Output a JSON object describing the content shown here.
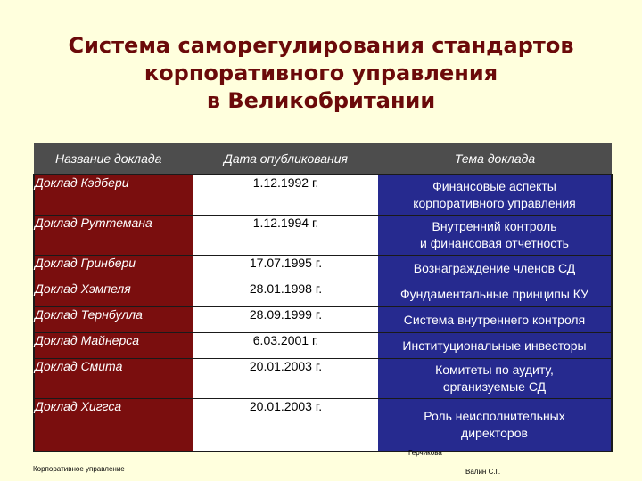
{
  "title": {
    "line1": "Система саморегулирования стандартов",
    "line2": "корпоративного управления",
    "line3": "в Великобритании"
  },
  "table": {
    "headers": [
      "Название доклада",
      "Дата опубликования",
      "Тема доклада"
    ],
    "rows": [
      {
        "name": "Доклад Кэдбери",
        "date": "1.12.1992 г.",
        "topic1": "Финансовые аспекты",
        "topic2": "корпоративного управления"
      },
      {
        "name": "Доклад Руттемана",
        "date": "1.12.1994 г.",
        "topic1": "Внутренний контроль",
        "topic2": "и финансовая отчетность"
      },
      {
        "name": "Доклад Гринбери",
        "date": "17.07.1995 г.",
        "topic1": "Вознаграждение членов СД",
        "topic2": ""
      },
      {
        "name": "Доклад Хэмпеля",
        "date": "28.01.1998 г.",
        "topic1": "Фундаментальные принципы КУ",
        "topic2": ""
      },
      {
        "name": "Доклад Тернбулла",
        "date": "28.09.1999 г.",
        "topic1": "Система внутреннего контроля",
        "topic2": ""
      },
      {
        "name": "Доклад Майнерса",
        "date": "6.03.2001 г.",
        "topic1": "Институциональные инвесторы",
        "topic2": ""
      },
      {
        "name": "Доклад Смита",
        "date": "20.01.2003 г.",
        "topic1": "Комитеты по аудиту,",
        "topic2": "организуемые СД"
      },
      {
        "name": "Доклад Хиггса",
        "date": "20.01.2003 г.",
        "topic1": "Роль неисполнительных",
        "topic2": "директоров"
      }
    ]
  },
  "footer": {
    "left": "Корпоративное управление",
    "right1": "Герчикова",
    "right2": "Валин С.Г."
  },
  "colors": {
    "background": "#FFFFDD",
    "title": "#6B0A0A",
    "name_column": "#7A0E0E",
    "topic_column": "#262A8F",
    "header": "#4D4D4D"
  }
}
